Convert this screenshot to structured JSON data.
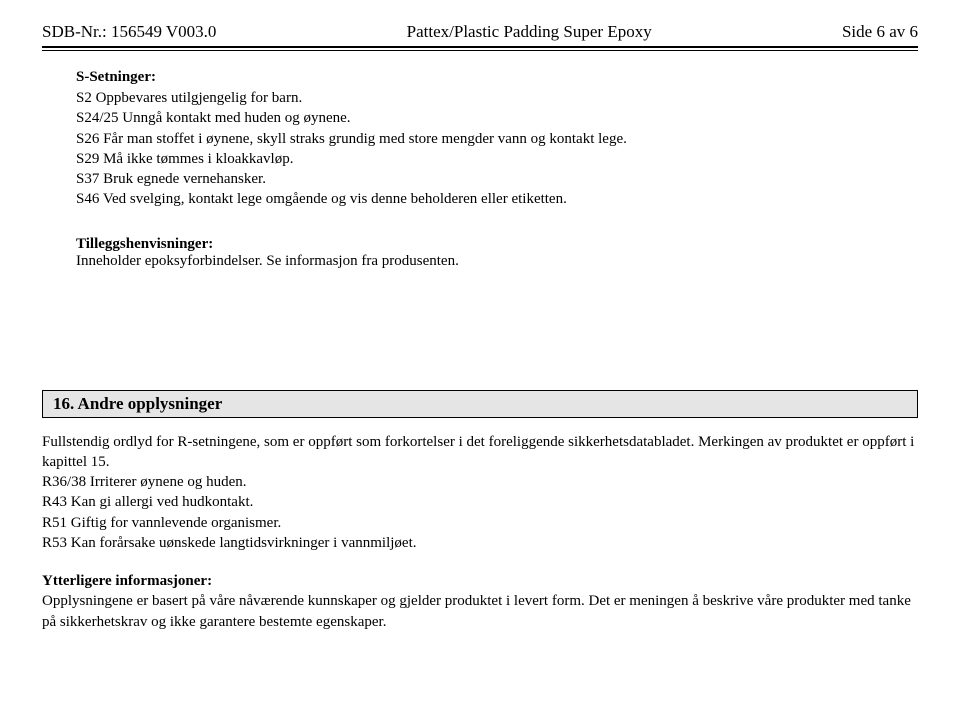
{
  "header": {
    "left": "SDB-Nr.: 156549  V003.0",
    "center": "Pattex/Plastic Padding Super Epoxy",
    "right": "Side 6 av 6"
  },
  "s_setninger": {
    "heading": "S-Setninger:",
    "lines": [
      "S2 Oppbevares utilgjengelig for barn.",
      "S24/25 Unngå kontakt med huden og øynene.",
      "S26 Får man stoffet i øynene, skyll straks grundig med store mengder vann og kontakt lege.",
      "S29 Må ikke tømmes i kloakkavløp.",
      "S37 Bruk egnede vernehansker.",
      "S46 Ved svelging, kontakt lege omgående og vis denne beholderen eller etiketten."
    ]
  },
  "tillegg": {
    "heading": "Tilleggshenvisninger:",
    "text": "Inneholder epoksyforbindelser. Se informasjon fra produsenten."
  },
  "section16": {
    "title": "16. Andre opplysninger",
    "intro": "Fullstendig ordlyd for R-setningene, som er oppført som forkortelser i det foreliggende sikkerhetsdatabladet. Merkingen av produktet er oppført i kapittel 15.",
    "r_lines": [
      "R36/38 Irriterer øynene og huden.",
      "R43 Kan gi allergi ved hudkontakt.",
      "R51 Giftig for vannlevende organismer.",
      "R53 Kan forårsake uønskede langtidsvirkninger i vannmiljøet."
    ],
    "ytter_heading": "Ytterligere informasjoner:",
    "ytter_text": "Opplysningene er basert på våre nåværende kunnskaper og gjelder produktet i levert form. Det er meningen å beskrive våre produkter med tanke på sikkerhetskrav og ikke garantere bestemte egenskaper."
  }
}
